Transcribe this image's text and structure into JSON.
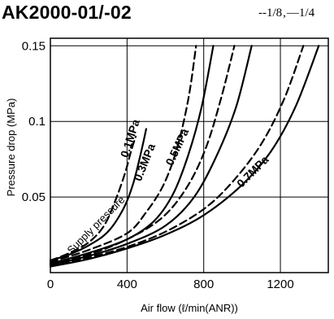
{
  "chart_data": {
    "type": "line",
    "title": "AK2000-01/-02",
    "legend": [
      {
        "style": "dashed",
        "label": "1/8"
      },
      {
        "style": "solid",
        "label": "1/4"
      }
    ],
    "legend_placement": "top-right",
    "xlabel": "Air flow (ℓ/min(ANR))",
    "ylabel": "Pressure drop (MPa)",
    "xlim": [
      0,
      1450
    ],
    "ylim": [
      0,
      0.155
    ],
    "x_ticks": [
      0,
      400,
      800,
      1200
    ],
    "x_tick_labels": [
      "0",
      "400",
      "800",
      "1200"
    ],
    "y_ticks": [
      0.05,
      0.1,
      0.15
    ],
    "y_tick_labels": [
      "0.05",
      "0.1",
      "0.15"
    ],
    "grid": true,
    "annotation": "Supply pressure",
    "series": [
      {
        "name": "0.1MPa",
        "style": "solid",
        "x": [
          0,
          100,
          200,
          300,
          380,
          430,
          470,
          500
        ],
        "y": [
          0.008,
          0.012,
          0.018,
          0.027,
          0.042,
          0.058,
          0.078,
          0.095
        ]
      },
      {
        "name": "0.1MPa",
        "style": "dashed",
        "x": [
          0,
          100,
          200,
          280,
          340,
          390,
          420,
          445
        ],
        "y": [
          0.008,
          0.013,
          0.02,
          0.031,
          0.048,
          0.066,
          0.08,
          0.09
        ]
      },
      {
        "name": "0.3MPa",
        "style": "solid",
        "x": [
          0,
          200,
          400,
          540,
          640,
          720,
          790,
          850
        ],
        "y": [
          0.006,
          0.013,
          0.022,
          0.034,
          0.052,
          0.078,
          0.11,
          0.15
        ]
      },
      {
        "name": "0.3MPa",
        "style": "dashed",
        "x": [
          0,
          200,
          400,
          500,
          590,
          660,
          720,
          760
        ],
        "y": [
          0.007,
          0.015,
          0.026,
          0.04,
          0.058,
          0.082,
          0.115,
          0.15
        ]
      },
      {
        "name": "0.5MPa",
        "style": "solid",
        "x": [
          0,
          200,
          400,
          600,
          750,
          870,
          970,
          1050
        ],
        "y": [
          0.005,
          0.011,
          0.019,
          0.031,
          0.05,
          0.078,
          0.11,
          0.15
        ]
      },
      {
        "name": "0.5MPa",
        "style": "dashed",
        "x": [
          0,
          200,
          400,
          580,
          710,
          810,
          890,
          960
        ],
        "y": [
          0.006,
          0.012,
          0.022,
          0.036,
          0.056,
          0.082,
          0.115,
          0.15
        ]
      },
      {
        "name": "0.7MPa",
        "style": "solid",
        "x": [
          0,
          200,
          400,
          600,
          800,
          1000,
          1150,
          1280,
          1400
        ],
        "y": [
          0.004,
          0.009,
          0.016,
          0.025,
          0.038,
          0.058,
          0.08,
          0.11,
          0.15
        ]
      },
      {
        "name": "0.7MPa",
        "style": "dashed",
        "x": [
          0,
          200,
          400,
          600,
          800,
          950,
          1100,
          1220,
          1320
        ],
        "y": [
          0.005,
          0.01,
          0.017,
          0.027,
          0.042,
          0.06,
          0.085,
          0.115,
          0.15
        ]
      }
    ],
    "curve_labels": [
      {
        "text": "0.1MPa",
        "x": 435,
        "y": 0.088,
        "angle": -72
      },
      {
        "text": "0.3MPa",
        "x": 510,
        "y": 0.072,
        "angle": -68
      },
      {
        "text": "0.5MPa",
        "x": 680,
        "y": 0.082,
        "angle": -65
      },
      {
        "text": "0.7MPa",
        "x": 1070,
        "y": 0.065,
        "angle": -45
      }
    ],
    "annotation_position": {
      "x": 110,
      "y": 0.012,
      "angle": -45
    }
  }
}
